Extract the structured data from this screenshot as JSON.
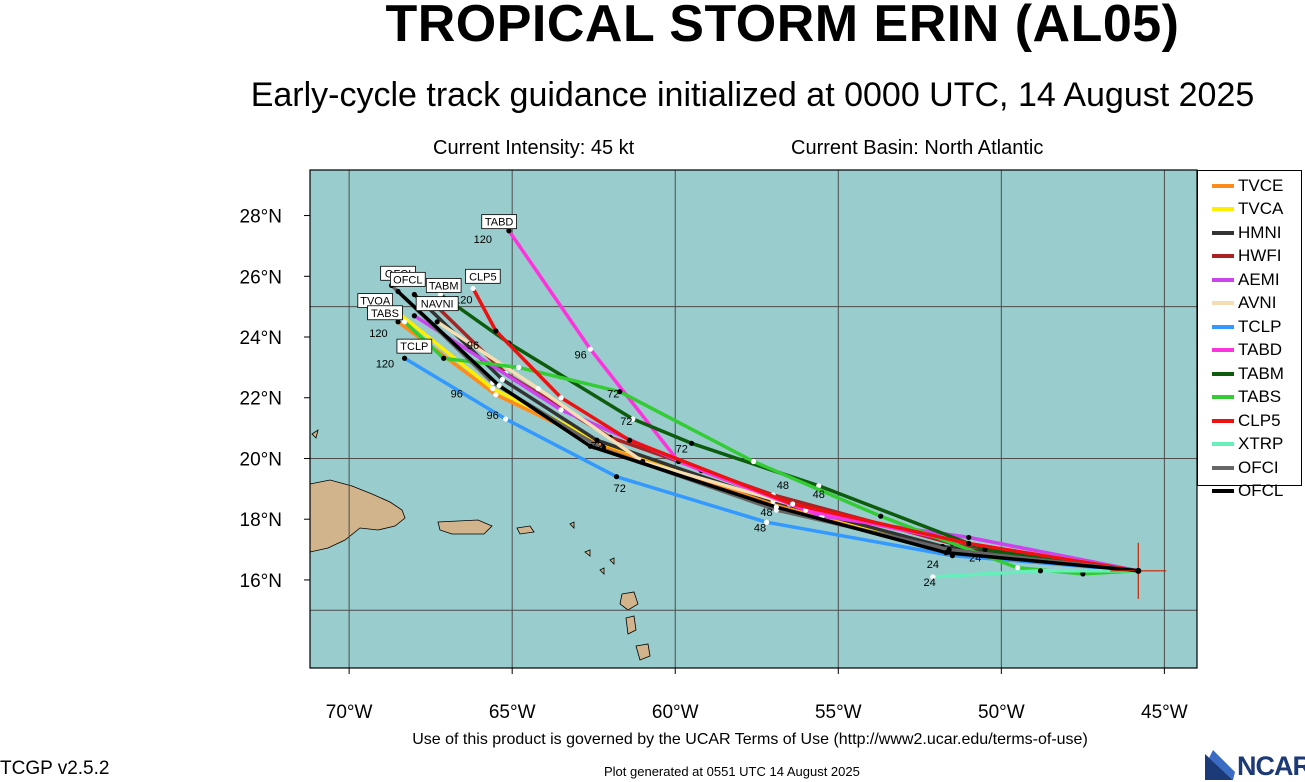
{
  "header": {
    "title": "TROPICAL STORM ERIN (AL05)",
    "subtitle": "Early-cycle track guidance initialized at 0000 UTC, 14 August 2025",
    "current_intensity": "Current Intensity: 45 kt",
    "current_basin": "Current Basin: North Atlantic"
  },
  "map": {
    "lon_range": [
      -71.2,
      -44.0
    ],
    "lat_range": [
      13.1,
      29.5
    ],
    "ocean_color": "#99cccc",
    "land_color": "#d2b48c",
    "grid_color": "#4d4d4d",
    "lon_ticks": [
      {
        "value": -70,
        "label": "70°W"
      },
      {
        "value": -65,
        "label": "65°W"
      },
      {
        "value": -60,
        "label": "60°W"
      },
      {
        "value": -55,
        "label": "55°W"
      },
      {
        "value": -50,
        "label": "50°W"
      },
      {
        "value": -45,
        "label": "45°W"
      }
    ],
    "lat_ticks": [
      {
        "value": 16,
        "label": "16°N"
      },
      {
        "value": 18,
        "label": "18°N"
      },
      {
        "value": 20,
        "label": "20°N"
      },
      {
        "value": 22,
        "label": "22°N"
      },
      {
        "value": 24,
        "label": "24°N"
      },
      {
        "value": 26,
        "label": "26°N"
      },
      {
        "value": 28,
        "label": "28°N"
      }
    ],
    "grid_lons": [
      -70,
      -65,
      -60,
      -55,
      -50,
      -45
    ],
    "grid_lats": [
      15,
      20,
      25
    ],
    "storm_position": {
      "lon": -45.8,
      "lat": 16.3
    }
  },
  "tracks": [
    {
      "name": "TVCE",
      "color": "#ff8c1a",
      "points": [
        [
          -45.8,
          16.3
        ],
        [
          -52,
          17.1
        ],
        [
          -57,
          18.5
        ],
        [
          -62.2,
          20.4
        ],
        [
          -65.5,
          22.1
        ],
        [
          -68.5,
          24.5
        ]
      ],
      "end_label": "120"
    },
    {
      "name": "TVCA",
      "color": "#ffee00",
      "points": [
        [
          -45.8,
          16.3
        ],
        [
          -52,
          17.1
        ],
        [
          -57,
          18.6
        ],
        [
          -62.2,
          20.5
        ],
        [
          -65.6,
          22.3
        ],
        [
          -68.5,
          24.8
        ]
      ],
      "end_label": "120"
    },
    {
      "name": "HMNI",
      "color": "#333333",
      "points": [
        [
          -45.8,
          16.3
        ],
        [
          -51.8,
          17.1
        ],
        [
          -57,
          18.6
        ],
        [
          -62.4,
          20.6
        ],
        [
          -65.3,
          22.6
        ],
        [
          -68,
          25.4
        ]
      ],
      "end_label": "120"
    },
    {
      "name": "HWFI",
      "color": "#aa2222",
      "points": [
        [
          -45.8,
          16.3
        ],
        [
          -51.5,
          17.2
        ],
        [
          -57,
          18.8
        ],
        [
          -62,
          20.7
        ],
        [
          -65.2,
          22.8
        ],
        [
          -67.5,
          25.2
        ]
      ],
      "end_label": "120"
    },
    {
      "name": "AEMI",
      "color": "#cc44ee",
      "points": [
        [
          -45.8,
          16.3
        ],
        [
          -51,
          17.4
        ],
        [
          -55.5,
          18.1
        ],
        [
          -59.2,
          19.6
        ],
        [
          -63.5,
          21.6
        ],
        [
          -68,
          24.7
        ]
      ],
      "end_label": "120"
    },
    {
      "name": "AVNI",
      "color": "#f5deb3",
      "points": [
        [
          -45.8,
          16.3
        ],
        [
          -51.5,
          17.3
        ],
        [
          -56.5,
          18.5
        ],
        [
          -61,
          19.9
        ],
        [
          -64.2,
          22.3
        ],
        [
          -67.3,
          24.5
        ]
      ],
      "end_label": "120"
    },
    {
      "name": "TCLP",
      "color": "#3399ff",
      "points": [
        [
          -45.8,
          16.3
        ],
        [
          -51.5,
          16.8
        ],
        [
          -57.2,
          17.9
        ],
        [
          -61.8,
          19.4
        ],
        [
          -65.2,
          21.3
        ],
        [
          -68.3,
          23.3
        ]
      ],
      "end_label": "120"
    },
    {
      "name": "TABD",
      "color": "#ff33dd",
      "points": [
        [
          -45.8,
          16.3
        ],
        [
          -51,
          17.2
        ],
        [
          -56,
          18.3
        ],
        [
          -59.9,
          19.9
        ],
        [
          -62.6,
          23.6
        ],
        [
          -65.1,
          27.5
        ]
      ],
      "end_label": "120"
    },
    {
      "name": "TABM",
      "color": "#0d5c0d",
      "points": [
        [
          -45.8,
          16.3
        ],
        [
          -50.5,
          17
        ],
        [
          -55.6,
          19.1
        ],
        [
          -59.5,
          20.5
        ],
        [
          -61.3,
          21.3
        ],
        [
          -65.1,
          23.8
        ],
        [
          -67.2,
          25.4
        ]
      ],
      "end_label": "120"
    },
    {
      "name": "TABS",
      "color": "#33cc33",
      "points": [
        [
          -45.8,
          16.3
        ],
        [
          -47.5,
          16.2
        ],
        [
          -49.5,
          16.4
        ],
        [
          -53.7,
          18.1
        ],
        [
          -57.6,
          19.9
        ],
        [
          -61.7,
          22.2
        ],
        [
          -64.8,
          23.0
        ],
        [
          -67.1,
          23.3
        ],
        [
          -68.3,
          24.5
        ]
      ],
      "end_label": "120"
    },
    {
      "name": "CLP5",
      "color": "#ee1111",
      "points": [
        [
          -45.8,
          16.3
        ],
        [
          -51,
          17.2
        ],
        [
          -56.4,
          18.5
        ],
        [
          -61.4,
          20.6
        ],
        [
          -63.5,
          22.0
        ],
        [
          -65.5,
          24.2
        ],
        [
          -66.2,
          25.6
        ]
      ],
      "end_label": "120"
    },
    {
      "name": "XTRP",
      "color": "#66eebb",
      "points": [
        [
          -45.8,
          16.3
        ],
        [
          -48.8,
          16.3
        ],
        [
          -52.1,
          16.1
        ]
      ],
      "end_label": "24"
    },
    {
      "name": "OFCI",
      "color": "#666666",
      "points": [
        [
          -45.8,
          16.3
        ],
        [
          -51.6,
          17.0
        ],
        [
          -56.9,
          18.3
        ],
        [
          -62.2,
          20.3
        ],
        [
          -65.6,
          22.5
        ],
        [
          -68.7,
          25.7
        ]
      ],
      "end_label": "120"
    },
    {
      "name": "OFCL",
      "color": "#000000",
      "points": [
        [
          -45.8,
          16.3
        ],
        [
          -51.7,
          16.9
        ],
        [
          -56.9,
          18.4
        ],
        [
          -62.6,
          20.4
        ],
        [
          -65.4,
          22.4
        ],
        [
          -68.5,
          25.5
        ]
      ],
      "end_label": "120"
    }
  ],
  "end_boxes": [
    {
      "text": "TABD",
      "lon": -65.4,
      "lat": 27.7
    },
    {
      "text": "CLP5",
      "lon": -65.9,
      "lat": 25.9
    },
    {
      "text": "TABM",
      "lon": -67.1,
      "lat": 25.6
    },
    {
      "text": "OFCI",
      "lon": -68.5,
      "lat": 26.0
    },
    {
      "text": "OFCL",
      "lon": -68.2,
      "lat": 25.8
    },
    {
      "text": "TVOA",
      "lon": -69.2,
      "lat": 25.1
    },
    {
      "text": "NAVNI",
      "lon": -67.3,
      "lat": 25.0
    },
    {
      "text": "TABS",
      "lon": -68.9,
      "lat": 24.7
    },
    {
      "text": "TCLP",
      "lon": -68.0,
      "lat": 23.6
    }
  ],
  "hour_labels": [
    {
      "text": "120",
      "lon": -66.5,
      "lat": 25.1
    },
    {
      "text": "120",
      "lon": -69.2,
      "lat": 24.9
    },
    {
      "text": "120",
      "lon": -69.1,
      "lat": 24.0
    },
    {
      "text": "120",
      "lon": -68.9,
      "lat": 23.0
    },
    {
      "text": "120",
      "lon": -65.9,
      "lat": 27.1
    },
    {
      "text": "96",
      "lon": -65.6,
      "lat": 21.3
    },
    {
      "text": "96",
      "lon": -62.9,
      "lat": 23.3
    },
    {
      "text": "96",
      "lon": -66.2,
      "lat": 23.6
    },
    {
      "text": "96",
      "lon": -66.7,
      "lat": 22.0
    },
    {
      "text": "72",
      "lon": -61.9,
      "lat": 22.0
    },
    {
      "text": "72",
      "lon": -61.5,
      "lat": 21.1
    },
    {
      "text": "72",
      "lon": -59.8,
      "lat": 20.2
    },
    {
      "text": "72",
      "lon": -62.4,
      "lat": 20.3
    },
    {
      "text": "72",
      "lon": -61.7,
      "lat": 18.9
    },
    {
      "text": "48",
      "lon": -56.7,
      "lat": 19.0
    },
    {
      "text": "48",
      "lon": -57.2,
      "lat": 18.1
    },
    {
      "text": "48",
      "lon": -57.4,
      "lat": 17.6
    },
    {
      "text": "48",
      "lon": -55.6,
      "lat": 18.7
    },
    {
      "text": "24",
      "lon": -52.2,
      "lat": 15.8
    },
    {
      "text": "24",
      "lon": -52.1,
      "lat": 16.4
    },
    {
      "text": "24",
      "lon": -50.8,
      "lat": 16.6
    }
  ],
  "legend": [
    {
      "label": "TVCE",
      "color": "#ff8c1a"
    },
    {
      "label": "TVCA",
      "color": "#ffee00"
    },
    {
      "label": "HMNI",
      "color": "#333333"
    },
    {
      "label": "HWFI",
      "color": "#aa2222"
    },
    {
      "label": "AEMI",
      "color": "#cc44ee"
    },
    {
      "label": "AVNI",
      "color": "#f5deb3"
    },
    {
      "label": "TCLP",
      "color": "#3399ff"
    },
    {
      "label": "TABD",
      "color": "#ff33dd"
    },
    {
      "label": "TABM",
      "color": "#0d5c0d"
    },
    {
      "label": "TABS",
      "color": "#33cc33"
    },
    {
      "label": "CLP5",
      "color": "#ee1111"
    },
    {
      "label": "XTRP",
      "color": "#66eebb"
    },
    {
      "label": "OFCI",
      "color": "#666666"
    },
    {
      "label": "OFCL",
      "color": "#000000"
    }
  ],
  "footer": {
    "terms": "Use of this product is governed by the UCAR Terms of Use (http://www2.ucar.edu/terms-of-use)",
    "version": "TCGP v2.5.2",
    "generated": "Plot generated at 0551 UTC   14 August 2025",
    "logo": "NCAR"
  }
}
